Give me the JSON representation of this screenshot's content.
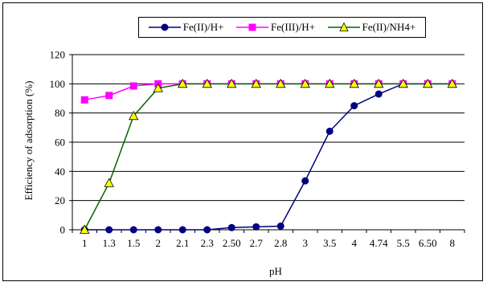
{
  "chart_data": {
    "type": "line",
    "xlabel": "pH",
    "ylabel": "Efficiency of adsorption (%)",
    "categories": [
      "1",
      "1.3",
      "1.5",
      "2",
      "2.1",
      "2.3",
      "2.50",
      "2.7",
      "2.8",
      "3",
      "3.5",
      "4",
      "4.74",
      "5.5",
      "6.50",
      "8"
    ],
    "ylim": [
      0,
      120
    ],
    "yticks": [
      "0",
      "20",
      "40",
      "60",
      "80",
      "100",
      "120"
    ],
    "grid": "horizontal",
    "legend_position": "top",
    "series": [
      {
        "name": "Fe(II)/H+",
        "color": "#000080",
        "marker": "circle",
        "values": [
          0,
          0,
          0,
          0,
          0,
          0,
          1.5,
          2,
          2.5,
          33.5,
          67.5,
          85,
          93,
          100,
          100,
          100
        ]
      },
      {
        "name": "Fe(III)/H+",
        "color": "#ff00ff",
        "marker": "square",
        "values": [
          89,
          92,
          98.5,
          100,
          100,
          100,
          100,
          100,
          100,
          100,
          100,
          100,
          100,
          100,
          100,
          100
        ]
      },
      {
        "name": "Fe(II)/NH4+",
        "color": "#006400",
        "marker": "triangle",
        "marker_fill": "#ffff00",
        "values": [
          0,
          32,
          78,
          97,
          100,
          100,
          100,
          100,
          100,
          100,
          100,
          100,
          100,
          100,
          100,
          100
        ]
      }
    ]
  }
}
